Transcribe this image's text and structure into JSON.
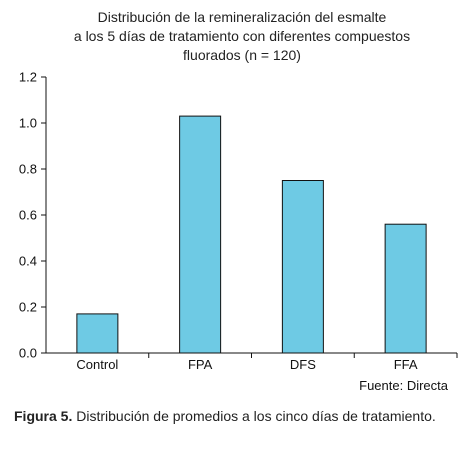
{
  "title_lines": [
    "Distribución de la remineralización del esmalte",
    "a los 5 días de tratamiento con diferentes compuestos",
    "fluorados (n = 120)"
  ],
  "source": "Fuente: Directa",
  "caption": {
    "label": "Figura 5.",
    "text": " Distribución de promedios a los cinco días de tratamiento."
  },
  "chart_data": {
    "type": "bar",
    "title": "Distribución de la remineralización del esmalte a los 5 días de tratamiento con diferentes compuestos fluorados (n = 120)",
    "categories": [
      "Control",
      "FPA",
      "DFS",
      "FFA"
    ],
    "values": [
      0.17,
      1.03,
      0.75,
      0.56
    ],
    "ylim": [
      0,
      1.2
    ],
    "yticks": [
      "0.0",
      "0.2",
      "0.4",
      "0.6",
      "0.8",
      "1.0",
      "1.2"
    ],
    "grid": false,
    "bar_color": "#6ecae4",
    "bar_stroke": "#111111"
  }
}
